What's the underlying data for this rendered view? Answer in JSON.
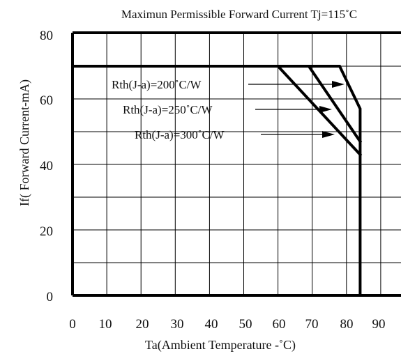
{
  "chart_data": {
    "type": "line",
    "title": "Maximun Permissible Forward Current Tj=115˚C",
    "xlabel": "Ta(Ambient Temperature -˚C)",
    "ylabel": "If( Forward Current-mA)",
    "xlim": [
      0,
      95
    ],
    "ylim": [
      0,
      80
    ],
    "xticks": [
      0,
      10,
      20,
      30,
      40,
      50,
      60,
      70,
      80,
      90
    ],
    "xtick_labels": [
      "0",
      "10",
      "20",
      "30",
      "40",
      "50",
      "60",
      "70",
      "80",
      "90"
    ],
    "yticks": [
      0,
      20,
      40,
      60,
      80
    ],
    "ytick_labels": [
      "0",
      "20",
      "40",
      "60",
      "80"
    ],
    "grid": true,
    "series": [
      {
        "name": "Rth(J-a)=200˚C/W",
        "x": [
          0,
          78,
          84,
          84
        ],
        "y": [
          70,
          70,
          57,
          0
        ]
      },
      {
        "name": "Rth(J-a)=250˚C/W",
        "x": [
          0,
          69,
          84
        ],
        "y": [
          70,
          70,
          47
        ]
      },
      {
        "name": "Rth(J-a)=300˚C/W",
        "x": [
          0,
          60,
          84
        ],
        "y": [
          70,
          70,
          43
        ]
      }
    ]
  }
}
